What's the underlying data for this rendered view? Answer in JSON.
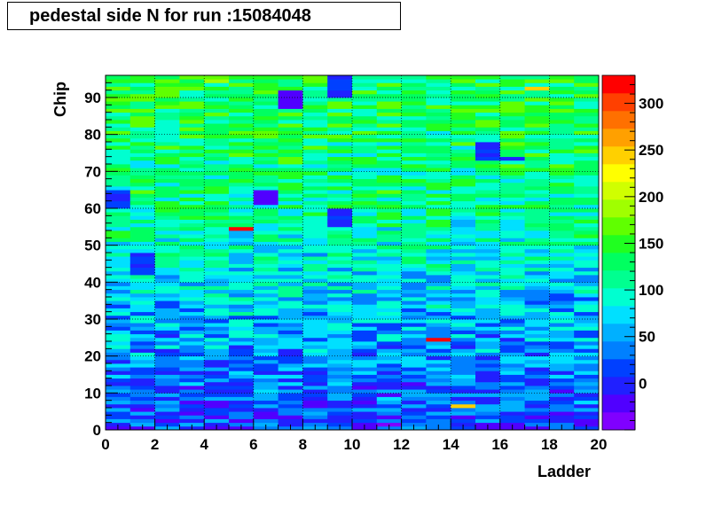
{
  "title": "pedestal side N for run :15084048",
  "chart_data": {
    "type": "heatmap",
    "title": "pedestal side N for run :15084048",
    "xlabel": "Ladder",
    "ylabel": "Chip",
    "xlim": [
      0,
      20
    ],
    "ylim": [
      0,
      96
    ],
    "x_bins": 20,
    "y_bins": 96,
    "x_ticks": [
      "0",
      "2",
      "4",
      "6",
      "8",
      "10",
      "12",
      "14",
      "16",
      "18",
      "20"
    ],
    "y_ticks": [
      "0",
      "10",
      "20",
      "30",
      "40",
      "50",
      "60",
      "70",
      "80",
      "90"
    ],
    "zlim": [
      -50,
      330
    ],
    "z_ticks": [
      "0",
      "50",
      "100",
      "150",
      "200",
      "250",
      "300"
    ],
    "grid": true,
    "palette": [
      "#8000ff",
      "#5000ff",
      "#2020ff",
      "#0040ff",
      "#0080ff",
      "#00b0ff",
      "#00e0ff",
      "#00ffd0",
      "#00ff90",
      "#00ff60",
      "#20ff20",
      "#60ff00",
      "#a0ff00",
      "#d0ff00",
      "#ffff00",
      "#ffd000",
      "#ffa000",
      "#ff7000",
      "#ff4000",
      "#ff0000"
    ],
    "trend": "values rise with chip number: ~0-60 for chips 0-40, ~100-160 for chips 60-96",
    "hot_cells": [
      {
        "ladder": 5,
        "chip": 54,
        "value": 320
      },
      {
        "ladder": 13,
        "chip": 24,
        "value": 330
      },
      {
        "ladder": 14,
        "chip": 6,
        "value": 250
      },
      {
        "ladder": 17,
        "chip": 92,
        "value": 250
      }
    ],
    "low_blocks": [
      {
        "ladder": 0,
        "chip_from": 60,
        "chip_to": 65,
        "value": 10
      },
      {
        "ladder": 1,
        "chip_from": 42,
        "chip_to": 48,
        "value": 10
      },
      {
        "ladder": 6,
        "chip_from": 61,
        "chip_to": 65,
        "value": -30
      },
      {
        "ladder": 7,
        "chip_from": 87,
        "chip_to": 92,
        "value": -20
      },
      {
        "ladder": 9,
        "chip_from": 90,
        "chip_to": 96,
        "value": 5
      },
      {
        "ladder": 9,
        "chip_from": 55,
        "chip_to": 60,
        "value": 5
      },
      {
        "ladder": 15,
        "chip_from": 73,
        "chip_to": 78,
        "value": 5
      },
      {
        "ladder": 16,
        "chip_from": 73,
        "chip_to": 74,
        "value": 5
      }
    ]
  }
}
